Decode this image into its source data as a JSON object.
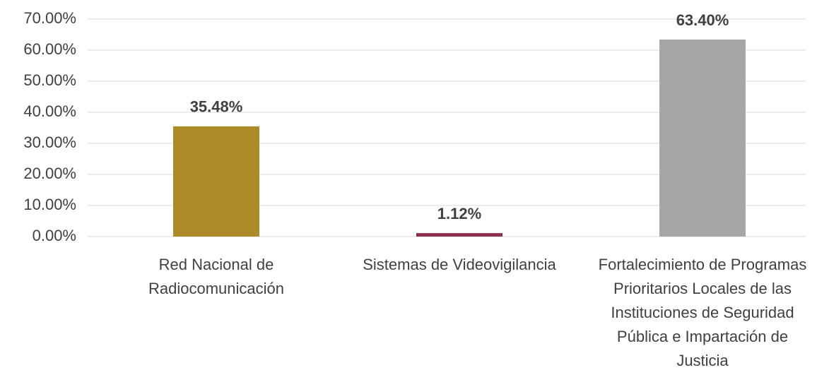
{
  "chart_data": {
    "type": "bar",
    "categories": [
      "Red Nacional de Radiocomunicación",
      "Sistemas de Videovigilancia",
      "Fortalecimiento de Programas Prioritarios Locales de las Instituciones de Seguridad Pública e Impartación de Justicia"
    ],
    "values": [
      35.48,
      1.12,
      63.4
    ],
    "value_labels": [
      "35.48%",
      "1.12%",
      "63.40%"
    ],
    "colors": [
      "#ae8b29",
      "#8c2f50",
      "#a6a6a6"
    ],
    "ylim": [
      0,
      70
    ],
    "yticks": [
      {
        "value": 0,
        "label": "0.00%"
      },
      {
        "value": 10,
        "label": "10.00%"
      },
      {
        "value": 20,
        "label": "20.00%"
      },
      {
        "value": 30,
        "label": "30.00%"
      },
      {
        "value": 40,
        "label": "40.00%"
      },
      {
        "value": 50,
        "label": "50.00%"
      },
      {
        "value": 60,
        "label": "60.00%"
      },
      {
        "value": 70,
        "label": "70.00%"
      }
    ],
    "grid": true
  }
}
